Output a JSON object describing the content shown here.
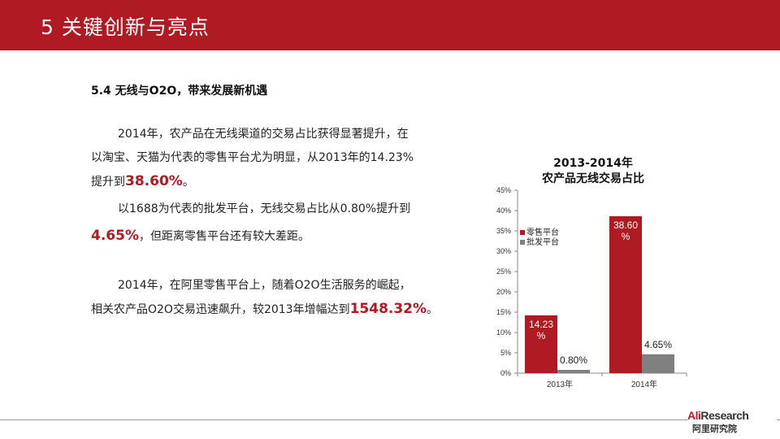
{
  "slide": {
    "title": "5 关键创新与亮点",
    "section_title": "5.4 无线与O2O，带来发展新机遇",
    "para1_line1": "2014年，农产品在无线渠道的交易占比获得显著提升，在",
    "para1_line2": "以淘宝、天猫为代表的零售平台尤为明显，从2013年的14.23%",
    "para1_line3_pre": "提升到",
    "para1_line3_hl": "38.60%",
    "para1_line3_post": "。",
    "para2_line1": "以1688为代表的批发平台，无线交易占比从0.80%提升到",
    "para2_line2_hl": "4.65%",
    "para2_line2_post": "，但距离零售平台还有较大差距。",
    "para3_line1": "2014年，在阿里零售平台上，随着O2O生活服务的崛起，",
    "para3_line2_pre": "相关农产品O2O交易迅速飙升，较2013年增幅达到",
    "para3_line2_hl": "1548.32%",
    "para3_line2_post": "。"
  },
  "logo": {
    "ali": "Ali",
    "research": "Research",
    "cn": "阿里研究院"
  },
  "colors": {
    "brand_red": "#b01a22",
    "retail_bar": "#b01a22",
    "wholesale_bar": "#808080"
  },
  "chart_data": {
    "type": "bar",
    "title_line1": "2013-2014年",
    "title_line2": "农产品无线交易占比",
    "categories": [
      "2013年",
      "2014年"
    ],
    "series": [
      {
        "name": "零售平台",
        "values": [
          14.23,
          38.6
        ],
        "labels": [
          "14.23%",
          "38.60%"
        ],
        "color": "#b01a22"
      },
      {
        "name": "批发平台",
        "values": [
          0.8,
          4.65
        ],
        "labels": [
          "0.80%",
          "4.65%"
        ],
        "color": "#808080"
      }
    ],
    "ylim": [
      0,
      45
    ],
    "yticks": [
      "0%",
      "5%",
      "10%",
      "15%",
      "20%",
      "25%",
      "30%",
      "35%",
      "40%",
      "45%"
    ],
    "legend_position": "left"
  }
}
